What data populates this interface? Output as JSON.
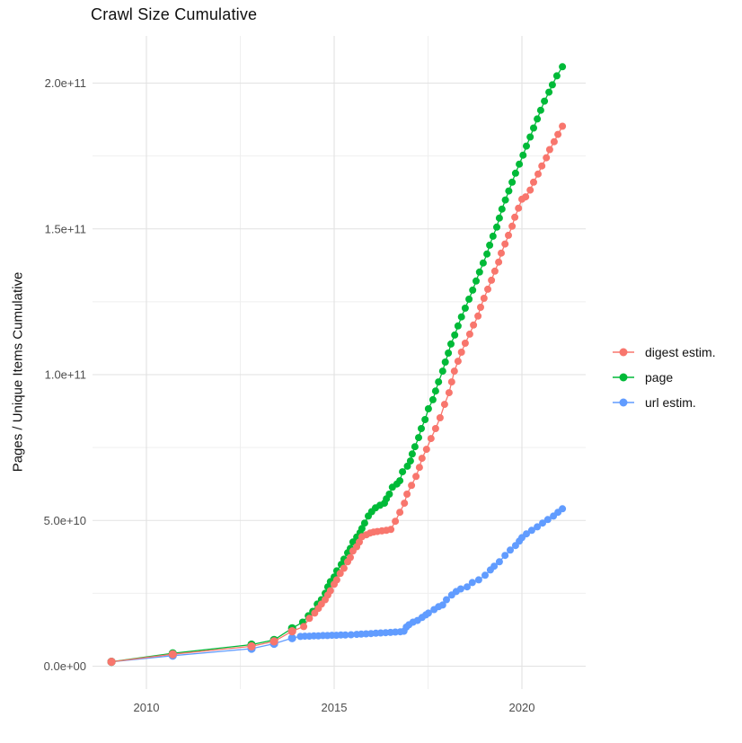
{
  "page": {
    "background": "#FFFFFF"
  },
  "chart_data": {
    "type": "scatter-line",
    "title": "Crawl Size Cumulative",
    "ylabel": "Pages / Unique Items Cumulative",
    "xlabel": "",
    "value_unit": 1000000000,
    "value_unit_note": "point values are in billions (1e9) of pages / unique items",
    "xlim": [
      2008.5,
      2021.7
    ],
    "ylim_billions": [
      -9,
      216
    ],
    "grid": {
      "major_color": "#E2E2E2",
      "minor_color": "#EFEFEF",
      "tick_text_color": "#4D4D4D"
    },
    "x_ticks": [
      {
        "year": 2010,
        "label": "2010"
      },
      {
        "year": 2015,
        "label": "2015"
      },
      {
        "year": 2020,
        "label": "2020"
      }
    ],
    "x_minor_years": [
      2012.5,
      2017.5
    ],
    "y_ticks": [
      {
        "billions": 0,
        "label": "0.0e+00"
      },
      {
        "billions": 50,
        "label": "5.0e+10"
      },
      {
        "billions": 100,
        "label": "1.0e+11"
      },
      {
        "billions": 150,
        "label": "1.5e+11"
      },
      {
        "billions": 200,
        "label": "2.0e+11"
      }
    ],
    "y_minor_billions": [
      25,
      75,
      125,
      175
    ],
    "legend": {
      "position": "right",
      "items": [
        {
          "label": "digest estim.",
          "color": "#F8766D"
        },
        {
          "label": "page",
          "color": "#00BA38"
        },
        {
          "label": "url estim.",
          "color": "#619CFF"
        }
      ]
    },
    "draw_order": [
      "url estim.",
      "page",
      "digest estim."
    ],
    "series": [
      {
        "name": "digest estim.",
        "color": "#F8766D",
        "points": [
          [
            2009.07,
            1.5
          ],
          [
            2010.7,
            4.1
          ],
          [
            2012.8,
            6.8
          ],
          [
            2013.4,
            8.5
          ],
          [
            2013.88,
            12.0
          ],
          [
            2014.19,
            13.6
          ],
          [
            2014.34,
            16.4
          ],
          [
            2014.48,
            18.2
          ],
          [
            2014.58,
            19.8
          ],
          [
            2014.66,
            21.3
          ],
          [
            2014.76,
            22.8
          ],
          [
            2014.83,
            24.4
          ],
          [
            2014.9,
            25.9
          ],
          [
            2015.0,
            28.1
          ],
          [
            2015.07,
            29.6
          ],
          [
            2015.16,
            31.8
          ],
          [
            2015.26,
            33.6
          ],
          [
            2015.36,
            35.8
          ],
          [
            2015.43,
            37.3
          ],
          [
            2015.5,
            39.5
          ],
          [
            2015.6,
            41.0
          ],
          [
            2015.67,
            42.6
          ],
          [
            2015.74,
            44.4
          ],
          [
            2015.86,
            45.1
          ],
          [
            2015.96,
            45.7
          ],
          [
            2016.05,
            46.0
          ],
          [
            2016.15,
            46.2
          ],
          [
            2016.27,
            46.4
          ],
          [
            2016.39,
            46.6
          ],
          [
            2016.51,
            46.9
          ],
          [
            2016.63,
            49.7
          ],
          [
            2016.75,
            52.8
          ],
          [
            2016.87,
            55.9
          ],
          [
            2016.94,
            59.0
          ],
          [
            2017.06,
            62.0
          ],
          [
            2017.18,
            65.1
          ],
          [
            2017.27,
            68.2
          ],
          [
            2017.34,
            71.3
          ],
          [
            2017.46,
            74.4
          ],
          [
            2017.58,
            78.1
          ],
          [
            2017.7,
            81.5
          ],
          [
            2017.82,
            85.2
          ],
          [
            2017.94,
            89.8
          ],
          [
            2018.06,
            93.8
          ],
          [
            2018.13,
            97.5
          ],
          [
            2018.2,
            101.2
          ],
          [
            2018.3,
            104.6
          ],
          [
            2018.39,
            107.7
          ],
          [
            2018.49,
            110.8
          ],
          [
            2018.61,
            113.9
          ],
          [
            2018.71,
            117.0
          ],
          [
            2018.83,
            120.1
          ],
          [
            2018.9,
            123.1
          ],
          [
            2018.99,
            126.2
          ],
          [
            2019.09,
            129.3
          ],
          [
            2019.19,
            132.4
          ],
          [
            2019.28,
            135.5
          ],
          [
            2019.38,
            138.6
          ],
          [
            2019.45,
            141.7
          ],
          [
            2019.55,
            144.8
          ],
          [
            2019.64,
            147.8
          ],
          [
            2019.74,
            150.9
          ],
          [
            2019.81,
            154.0
          ],
          [
            2019.91,
            157.1
          ],
          [
            2020.0,
            160.2
          ],
          [
            2020.1,
            161.0
          ],
          [
            2020.22,
            163.3
          ],
          [
            2020.31,
            166.0
          ],
          [
            2020.43,
            168.8
          ],
          [
            2020.53,
            171.6
          ],
          [
            2020.65,
            174.4
          ],
          [
            2020.74,
            177.2
          ],
          [
            2020.86,
            179.9
          ],
          [
            2020.96,
            182.4
          ],
          [
            2021.08,
            185.2
          ]
        ]
      },
      {
        "name": "page",
        "color": "#00BA38",
        "points": [
          [
            2009.07,
            1.5
          ],
          [
            2010.7,
            4.4
          ],
          [
            2012.8,
            7.4
          ],
          [
            2013.4,
            9.0
          ],
          [
            2013.88,
            13.0
          ],
          [
            2014.16,
            15.1
          ],
          [
            2014.31,
            17.3
          ],
          [
            2014.43,
            18.8
          ],
          [
            2014.55,
            21.3
          ],
          [
            2014.66,
            22.8
          ],
          [
            2014.76,
            25.0
          ],
          [
            2014.83,
            27.2
          ],
          [
            2014.9,
            29.0
          ],
          [
            2015.0,
            30.6
          ],
          [
            2015.07,
            32.7
          ],
          [
            2015.19,
            34.9
          ],
          [
            2015.26,
            36.7
          ],
          [
            2015.36,
            38.9
          ],
          [
            2015.43,
            40.4
          ],
          [
            2015.5,
            42.6
          ],
          [
            2015.6,
            44.3
          ],
          [
            2015.69,
            45.8
          ],
          [
            2015.74,
            47.2
          ],
          [
            2015.81,
            49.1
          ],
          [
            2015.91,
            51.5
          ],
          [
            2016.0,
            53.0
          ],
          [
            2016.1,
            54.3
          ],
          [
            2016.22,
            55.2
          ],
          [
            2016.34,
            55.9
          ],
          [
            2016.39,
            57.4
          ],
          [
            2016.47,
            59.0
          ],
          [
            2016.55,
            61.4
          ],
          [
            2016.67,
            62.5
          ],
          [
            2016.75,
            63.6
          ],
          [
            2016.82,
            66.7
          ],
          [
            2016.95,
            68.6
          ],
          [
            2017.03,
            70.4
          ],
          [
            2017.08,
            72.8
          ],
          [
            2017.15,
            75.3
          ],
          [
            2017.25,
            78.4
          ],
          [
            2017.32,
            81.5
          ],
          [
            2017.42,
            84.6
          ],
          [
            2017.51,
            88.3
          ],
          [
            2017.63,
            91.4
          ],
          [
            2017.7,
            94.4
          ],
          [
            2017.78,
            97.5
          ],
          [
            2017.89,
            101.2
          ],
          [
            2017.96,
            104.3
          ],
          [
            2018.04,
            107.4
          ],
          [
            2018.11,
            110.5
          ],
          [
            2018.21,
            113.6
          ],
          [
            2018.3,
            116.7
          ],
          [
            2018.39,
            119.8
          ],
          [
            2018.49,
            122.8
          ],
          [
            2018.59,
            125.9
          ],
          [
            2018.69,
            129.0
          ],
          [
            2018.78,
            132.1
          ],
          [
            2018.87,
            135.2
          ],
          [
            2018.97,
            138.3
          ],
          [
            2019.07,
            141.4
          ],
          [
            2019.14,
            144.4
          ],
          [
            2019.23,
            147.5
          ],
          [
            2019.33,
            150.6
          ],
          [
            2019.4,
            153.7
          ],
          [
            2019.47,
            156.8
          ],
          [
            2019.56,
            159.9
          ],
          [
            2019.65,
            163.0
          ],
          [
            2019.74,
            166.0
          ],
          [
            2019.83,
            169.1
          ],
          [
            2019.93,
            172.2
          ],
          [
            2020.03,
            175.3
          ],
          [
            2020.12,
            178.4
          ],
          [
            2020.22,
            181.5
          ],
          [
            2020.31,
            184.6
          ],
          [
            2020.41,
            187.7
          ],
          [
            2020.5,
            190.7
          ],
          [
            2020.6,
            193.8
          ],
          [
            2020.72,
            196.9
          ],
          [
            2020.81,
            199.4
          ],
          [
            2020.93,
            202.5
          ],
          [
            2021.08,
            205.6
          ]
        ]
      },
      {
        "name": "url estim.",
        "color": "#619CFF",
        "points": [
          [
            2009.07,
            1.5
          ],
          [
            2010.7,
            3.6
          ],
          [
            2012.8,
            6.0
          ],
          [
            2013.4,
            7.7
          ],
          [
            2013.88,
            9.6
          ],
          [
            2014.1,
            10.2
          ],
          [
            2014.22,
            10.3
          ],
          [
            2014.34,
            10.3
          ],
          [
            2014.46,
            10.4
          ],
          [
            2014.58,
            10.4
          ],
          [
            2014.7,
            10.5
          ],
          [
            2014.82,
            10.5
          ],
          [
            2014.94,
            10.6
          ],
          [
            2015.06,
            10.6
          ],
          [
            2015.18,
            10.7
          ],
          [
            2015.3,
            10.7
          ],
          [
            2015.45,
            10.8
          ],
          [
            2015.6,
            10.9
          ],
          [
            2015.72,
            11.0
          ],
          [
            2015.85,
            11.1
          ],
          [
            2015.98,
            11.2
          ],
          [
            2016.11,
            11.3
          ],
          [
            2016.24,
            11.4
          ],
          [
            2016.37,
            11.5
          ],
          [
            2016.5,
            11.6
          ],
          [
            2016.63,
            11.7
          ],
          [
            2016.76,
            11.8
          ],
          [
            2016.86,
            12.0
          ],
          [
            2016.92,
            13.4
          ],
          [
            2016.99,
            14.2
          ],
          [
            2017.1,
            15.1
          ],
          [
            2017.22,
            15.7
          ],
          [
            2017.34,
            16.7
          ],
          [
            2017.44,
            17.6
          ],
          [
            2017.51,
            18.2
          ],
          [
            2017.66,
            19.4
          ],
          [
            2017.78,
            20.4
          ],
          [
            2017.89,
            21.0
          ],
          [
            2017.99,
            22.8
          ],
          [
            2018.13,
            24.4
          ],
          [
            2018.25,
            25.6
          ],
          [
            2018.37,
            26.5
          ],
          [
            2018.54,
            27.2
          ],
          [
            2018.68,
            28.7
          ],
          [
            2018.85,
            29.6
          ],
          [
            2019.02,
            31.2
          ],
          [
            2019.16,
            33.0
          ],
          [
            2019.26,
            34.3
          ],
          [
            2019.4,
            35.8
          ],
          [
            2019.55,
            38.0
          ],
          [
            2019.69,
            39.8
          ],
          [
            2019.83,
            41.4
          ],
          [
            2019.93,
            42.9
          ],
          [
            2020.0,
            44.1
          ],
          [
            2020.12,
            45.4
          ],
          [
            2020.26,
            46.6
          ],
          [
            2020.41,
            47.8
          ],
          [
            2020.55,
            49.1
          ],
          [
            2020.69,
            50.3
          ],
          [
            2020.84,
            51.5
          ],
          [
            2020.96,
            52.8
          ],
          [
            2021.08,
            54.0
          ]
        ]
      }
    ]
  }
}
